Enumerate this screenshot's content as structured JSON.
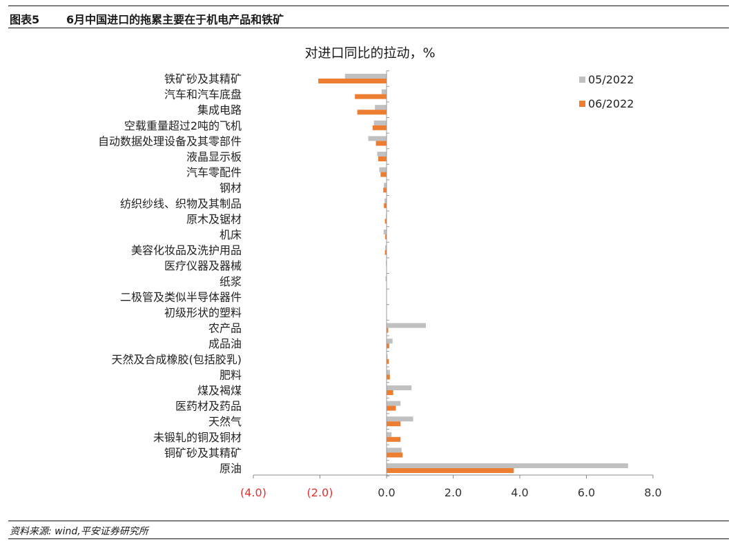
{
  "figure_label": "图表5",
  "figure_title": "6月中国进口的拖累主要在于机电产品和铁矿",
  "source": "资料来源: wind,平安证券研究所",
  "chart_data": {
    "type": "bar",
    "orientation": "horizontal",
    "title": "对进口同比的拉动，%",
    "categories": [
      "铁矿砂及其精矿",
      "汽车和汽车底盘",
      "集成电路",
      "空载重量超过2吨的飞机",
      "自动数据处理设备及其零部件",
      "液晶显示板",
      "汽车零配件",
      "钢材",
      "纺织纱线、织物及其制品",
      "原木及锯材",
      "机床",
      "美容化妆品及洗护用品",
      "医疗仪器及器械",
      "纸浆",
      "二极管及类似半导体器件",
      "初级形状的塑料",
      "农产品",
      "成品油",
      "天然及合成橡胶(包括胶乳)",
      "肥料",
      "煤及褐煤",
      "医药材及药品",
      "天然气",
      "未锻轧的铜及铜材",
      "铜矿砂及其精矿",
      "原油"
    ],
    "series": [
      {
        "name": "05/2022",
        "color": "#c0c0c0",
        "values": [
          -1.25,
          -0.15,
          -0.35,
          -0.38,
          -0.55,
          -0.28,
          -0.22,
          -0.08,
          -0.06,
          -0.02,
          -0.09,
          -0.04,
          -0.02,
          -0.03,
          0.0,
          0.0,
          1.18,
          0.18,
          0.03,
          0.1,
          0.75,
          0.42,
          0.8,
          0.15,
          0.45,
          7.25
        ]
      },
      {
        "name": "06/2022",
        "color": "#ed7d31",
        "values": [
          -2.05,
          -0.95,
          -0.88,
          -0.42,
          -0.32,
          -0.25,
          -0.18,
          -0.1,
          -0.08,
          -0.05,
          -0.04,
          -0.05,
          -0.01,
          -0.01,
          0.0,
          0.0,
          0.05,
          0.08,
          0.07,
          0.1,
          0.2,
          0.28,
          0.42,
          0.42,
          0.48,
          3.82
        ]
      }
    ],
    "xlim": [
      -4,
      8
    ],
    "xticks": [
      {
        "value": -4,
        "label": "(4.0)",
        "color": "#e03030"
      },
      {
        "value": -2,
        "label": "(2.0)",
        "color": "#e03030"
      },
      {
        "value": 0,
        "label": "0.0",
        "color": "#333333"
      },
      {
        "value": 2,
        "label": "2.0",
        "color": "#333333"
      },
      {
        "value": 4,
        "label": "4.0",
        "color": "#333333"
      },
      {
        "value": 6,
        "label": "6.0",
        "color": "#333333"
      },
      {
        "value": 8,
        "label": "8.0",
        "color": "#333333"
      }
    ],
    "legend_position": "top-right",
    "grid": false
  }
}
